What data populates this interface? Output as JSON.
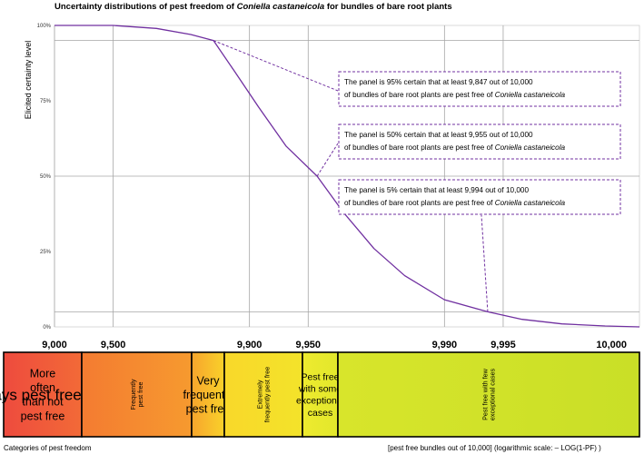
{
  "chart_data": {
    "type": "line",
    "title_pre": "Uncertainty distributions of pest freedom of ",
    "title_italic": "Coniella castaneicola",
    "title_post": " for bundles of bare root plants",
    "ylabel": "Elicited certainty level",
    "y_ticks": [
      {
        "value": 100,
        "label": "100%"
      },
      {
        "value": 75,
        "label": "75%"
      },
      {
        "value": 50,
        "label": "50%"
      },
      {
        "value": 25,
        "label": "25%"
      },
      {
        "value": 0,
        "label": "0%"
      }
    ],
    "x_ticks": [
      {
        "value": 9000,
        "label": "9,000"
      },
      {
        "value": 9500,
        "label": "9,500"
      },
      {
        "value": 9900,
        "label": "9,900"
      },
      {
        "value": 9950,
        "label": "9,950"
      },
      {
        "value": 9990,
        "label": "9,990"
      },
      {
        "value": 9995,
        "label": "9,995"
      },
      {
        "value": 10000,
        "label": "10,000"
      }
    ],
    "x_scale": "logarithmic: -LOG(1-PF)",
    "ylim": [
      0,
      100
    ],
    "series": [
      {
        "color": "#7030a0",
        "points": [
          {
            "x": 9500,
            "y": 100
          },
          {
            "x": 9700,
            "y": 99
          },
          {
            "x": 9800,
            "y": 97
          },
          {
            "x": 9847,
            "y": 95
          },
          {
            "x": 9880,
            "y": 85
          },
          {
            "x": 9910,
            "y": 73
          },
          {
            "x": 9935,
            "y": 60
          },
          {
            "x": 9955,
            "y": 50
          },
          {
            "x": 9967,
            "y": 38
          },
          {
            "x": 9977,
            "y": 26
          },
          {
            "x": 9984,
            "y": 17
          },
          {
            "x": 9990,
            "y": 9
          },
          {
            "x": 9994,
            "y": 5
          },
          {
            "x": 9996,
            "y": 2.5
          },
          {
            "x": 9997.5,
            "y": 1
          },
          {
            "x": 9998.5,
            "y": 0.3
          },
          {
            "x": 10000,
            "y": 0
          }
        ]
      }
    ],
    "reference_lines_y": [
      95,
      50,
      5
    ],
    "annotations": [
      {
        "pre": "The panel is 95% certain that at least 9,847 out of 10,000",
        "line2": "of bundles of bare root plants are pest free of ",
        "italic": "Coniella castaneicola",
        "x": 9847,
        "y": 95
      },
      {
        "pre": "The panel is 50% certain that at least 9,955 out of 10,000",
        "line2": "of bundles of bare root plants are pest free of ",
        "italic": "Coniella castaneicola",
        "x": 9955,
        "y": 50
      },
      {
        "pre": "The panel is 5% certain that at least 9,994 out of 10,000",
        "line2": "of bundles of bare root plants are pest free of ",
        "italic": "Coniella castaneicola",
        "x": 9994,
        "y": 5
      }
    ]
  },
  "categories": [
    {
      "lines": [
        "More",
        "often",
        "than not",
        "pest free"
      ],
      "rotated": false,
      "color_from": "#ee4b3e",
      "color_to": "#f26a37"
    },
    {
      "lines": [
        "Frequently",
        "pest free"
      ],
      "rotated": true,
      "color_from": "#f47b31",
      "color_to": "#f69a2f"
    },
    {
      "lines": [
        "Very",
        "frequently",
        "pest free"
      ],
      "rotated": false,
      "color_from": "#f7a52d",
      "color_to": "#f9d12a"
    },
    {
      "lines": [
        "Extremely",
        "frequently pest free"
      ],
      "rotated": true,
      "color_from": "#f9d82a",
      "color_to": "#f3e32a"
    },
    {
      "lines": [
        "Pest free",
        "with some",
        "exceptional",
        "cases"
      ],
      "rotated": false,
      "color_from": "#eeea2e",
      "color_to": "#e2e82c"
    },
    {
      "lines": [
        "Pest free with few",
        "exceptional cases"
      ],
      "rotated": true,
      "color_from": "#d8e52b",
      "color_to": "#c9df27"
    },
    {
      "lines": [
        "Almost always pest free"
      ],
      "rotated": false,
      "color_from": "#bcd524",
      "color_to": "#5a8e32"
    }
  ],
  "footer": {
    "left": "Categories of pest freedom",
    "right": "[pest free bundles out of 10,000] (logarithmic scale: – LOG(1-PF) )"
  }
}
